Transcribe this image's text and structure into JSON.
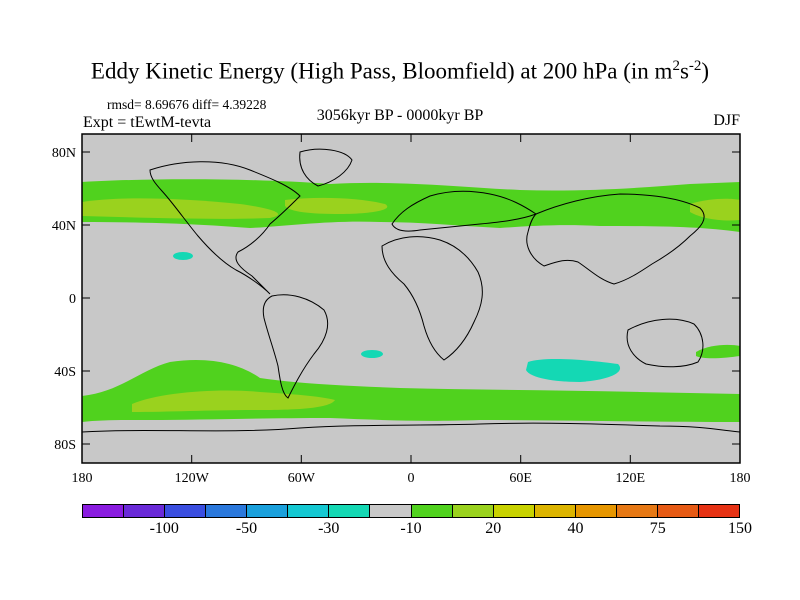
{
  "title": {
    "main": "Eddy Kinetic Energy (High Pass, Bloomfield) at 200 hPa (in m",
    "sup1": "2",
    "mid": "s",
    "sup2": "-2",
    "end": ")"
  },
  "stats": "rmsd= 8.69676 diff= 4.39228",
  "expt": "Expt = tEwtM-tevta",
  "period": "3056kyr BP - 0000kyr BP",
  "season": "DJF",
  "axes": {
    "lat_ticks": [
      "80N",
      "40N",
      "0",
      "40S",
      "80S"
    ],
    "lon_ticks": [
      "180",
      "120W",
      "60W",
      "0",
      "60E",
      "120E",
      "180"
    ]
  },
  "colorbar": {
    "colors": [
      "#8a1ce0",
      "#6a2ad8",
      "#3a4ee0",
      "#2a78dc",
      "#1aa0dc",
      "#14c8d2",
      "#14d8b4",
      "#c8c8c8",
      "#50d21e",
      "#9ad21e",
      "#c8d200",
      "#dcb400",
      "#e69600",
      "#e67814",
      "#e65a14",
      "#e63214"
    ],
    "labels": [
      "-100",
      "-50",
      "-30",
      "-10",
      "20",
      "40",
      "75",
      "150"
    ]
  },
  "colors": {
    "land_fill": "#c8c8c8",
    "pos_green": "#50d21e",
    "pos_yellowgreen": "#9ad21e",
    "pos_yellow": "#c8d200",
    "neg_cyan": "#14d8b4"
  }
}
